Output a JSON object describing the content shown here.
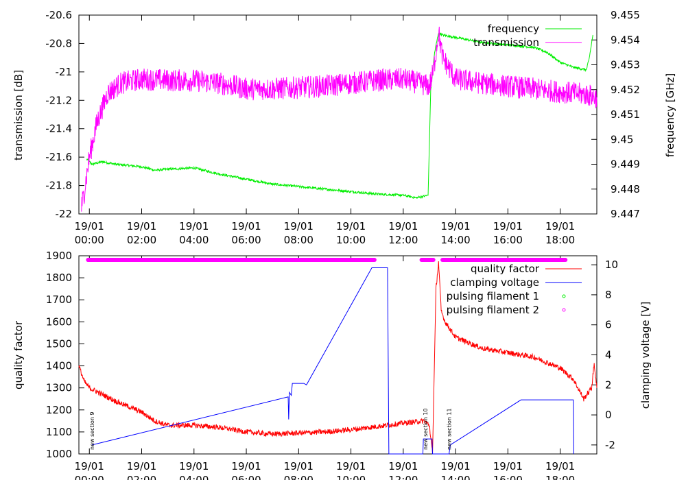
{
  "chart_data": [
    {
      "type": "line",
      "title": "",
      "xlabel": "",
      "ylabel": "transmission [dB]",
      "y2label": "frequency [GHz]",
      "xlim_hours": [
        -0.4,
        19.4
      ],
      "ylim": [
        -22,
        -20.6
      ],
      "y2lim": [
        9.447,
        9.455
      ],
      "x_tick_hours": [
        0,
        2,
        4,
        6,
        8,
        10,
        12,
        14,
        16,
        18
      ],
      "x_tick_labels": [
        [
          "19/01",
          "00:00"
        ],
        [
          "19/01",
          "02:00"
        ],
        [
          "19/01",
          "04:00"
        ],
        [
          "19/01",
          "06:00"
        ],
        [
          "19/01",
          "08:00"
        ],
        [
          "19/01",
          "10:00"
        ],
        [
          "19/01",
          "12:00"
        ],
        [
          "19/01",
          "14:00"
        ],
        [
          "19/01",
          "16:00"
        ],
        [
          "19/01",
          "18:00"
        ]
      ],
      "y_ticks": [
        "-22",
        "-21.8",
        "-21.6",
        "-21.4",
        "-21.2",
        "-21",
        "-20.8",
        "-20.6"
      ],
      "y2_ticks": [
        "9.447",
        "9.448",
        "9.449",
        "9.45",
        "9.451",
        "9.452",
        "9.453",
        "9.454",
        "9.455"
      ],
      "legend": [
        "frequency",
        "transmission"
      ],
      "series": [
        {
          "name": "frequency",
          "axis": "y2",
          "color": "#00ee00",
          "noise": 5e-05,
          "x": [
            -0.1,
            0.1,
            0.5,
            1,
            2,
            2.5,
            3,
            4,
            5,
            6,
            7,
            8,
            9,
            10,
            11,
            12,
            12.5,
            12.95,
            13.05,
            13.2,
            13.35,
            13.5,
            14,
            15,
            16,
            17,
            17.5,
            18,
            18.5,
            19.0,
            19.1,
            19.25
          ],
          "y": [
            9.4492,
            9.449,
            9.4491,
            9.449,
            9.4489,
            9.44876,
            9.4488,
            9.44885,
            9.4486,
            9.4484,
            9.4482,
            9.4481,
            9.448,
            9.4479,
            9.4478,
            9.44775,
            9.44765,
            9.44775,
            9.452,
            9.4535,
            9.4543,
            9.4542,
            9.4541,
            9.4539,
            9.4538,
            9.4537,
            9.4535,
            9.4531,
            9.4529,
            9.4528,
            9.4532,
            9.4542
          ]
        },
        {
          "name": "transmission",
          "axis": "y",
          "color": "#ff00ff",
          "noise": 0.08,
          "x": [
            -0.3,
            -0.2,
            0,
            0.3,
            0.7,
            1.2,
            2,
            3,
            4,
            5,
            5.5,
            6,
            7,
            8,
            9,
            10,
            11,
            12,
            13,
            13.15,
            13.35,
            13.5,
            14,
            15,
            16,
            17,
            18,
            19,
            19.4
          ],
          "y": [
            -21.95,
            -21.85,
            -21.6,
            -21.35,
            -21.15,
            -21.08,
            -21.05,
            -21.06,
            -21.06,
            -21.08,
            -21.1,
            -21.12,
            -21.12,
            -21.11,
            -21.1,
            -21.08,
            -21.06,
            -21.05,
            -21.1,
            -21.0,
            -20.72,
            -20.9,
            -21.05,
            -21.08,
            -21.1,
            -21.12,
            -21.14,
            -21.16,
            -21.18
          ]
        }
      ]
    },
    {
      "type": "line",
      "title": "",
      "xlabel": "",
      "ylabel": "quality factor",
      "y2label": "clamping voltage [V]",
      "xlim_hours": [
        -0.4,
        19.4
      ],
      "ylim": [
        1000,
        1900
      ],
      "y2lim": [
        -2.6,
        10.6
      ],
      "x_tick_hours": [
        0,
        2,
        4,
        6,
        8,
        10,
        12,
        14,
        16,
        18
      ],
      "x_tick_labels": [
        [
          "19/01",
          "00:00"
        ],
        [
          "19/01",
          "02:00"
        ],
        [
          "19/01",
          "04:00"
        ],
        [
          "19/01",
          "06:00"
        ],
        [
          "19/01",
          "08:00"
        ],
        [
          "19/01",
          "10:00"
        ],
        [
          "19/01",
          "12:00"
        ],
        [
          "19/01",
          "14:00"
        ],
        [
          "19/01",
          "16:00"
        ],
        [
          "19/01",
          "18:00"
        ]
      ],
      "y_ticks": [
        "1000",
        "1100",
        "1200",
        "1300",
        "1400",
        "1500",
        "1600",
        "1700",
        "1800",
        "1900"
      ],
      "y2_ticks": [
        "-2",
        "0",
        "2",
        "4",
        "6",
        "8",
        "10"
      ],
      "legend": [
        "quality factor",
        "clamping voltage",
        "pulsing filament 1",
        "pulsing filament 2"
      ],
      "series": [
        {
          "name": "quality factor",
          "axis": "y",
          "color": "#ff0000",
          "noise": 12,
          "x": [
            -0.4,
            -0.2,
            0,
            0.5,
            1,
            1.5,
            2,
            2.5,
            3,
            4,
            5,
            6,
            7,
            8,
            9,
            10,
            11,
            12,
            12.8,
            13.0,
            13.12,
            13.25,
            13.35,
            13.45,
            13.6,
            14,
            15,
            16,
            17,
            18,
            18.5,
            18.9,
            19.2,
            19.3,
            19.4
          ],
          "y": [
            1400,
            1330,
            1300,
            1270,
            1240,
            1215,
            1190,
            1150,
            1130,
            1130,
            1120,
            1100,
            1090,
            1095,
            1100,
            1110,
            1125,
            1140,
            1150,
            1130,
            1000,
            1750,
            1870,
            1650,
            1600,
            1530,
            1480,
            1460,
            1440,
            1390,
            1340,
            1250,
            1300,
            1410,
            1300
          ]
        },
        {
          "name": "clamping voltage",
          "axis": "y2",
          "color": "#0000ff",
          "noise": 0,
          "x": [
            0.1,
            7.6,
            7.62,
            7.65,
            7.72,
            7.76,
            8.2,
            8.3,
            10.8,
            11.2,
            11.4,
            11.45,
            12.75,
            12.77,
            13.05,
            13.1,
            13.12,
            13.2,
            13.75,
            13.8,
            16.5,
            18.5,
            18.52
          ],
          "y": [
            -2.0,
            1.2,
            -0.3,
            1.5,
            1.3,
            2.1,
            2.1,
            2.0,
            9.8,
            9.8,
            9.8,
            -2.6,
            -2.6,
            -1.6,
            -1.6,
            -1.6,
            -2.6,
            -2.6,
            -2.6,
            -2.0,
            1.0,
            1.0,
            -2.6
          ]
        }
      ],
      "pulsing_filament_2_segments_hours": [
        [
          -0.05,
          10.9
        ],
        [
          12.7,
          13.15
        ],
        [
          13.5,
          18.2
        ]
      ],
      "pulsing_filament_2_color": "#ff00ff",
      "pulsing_filament_1_color": "#00ee00",
      "annotations": [
        {
          "text": "new section 9",
          "x_hour": 0.1
        },
        {
          "text": "new section 10",
          "x_hour": 12.85
        },
        {
          "text": "new section 11",
          "x_hour": 13.75
        }
      ]
    }
  ]
}
